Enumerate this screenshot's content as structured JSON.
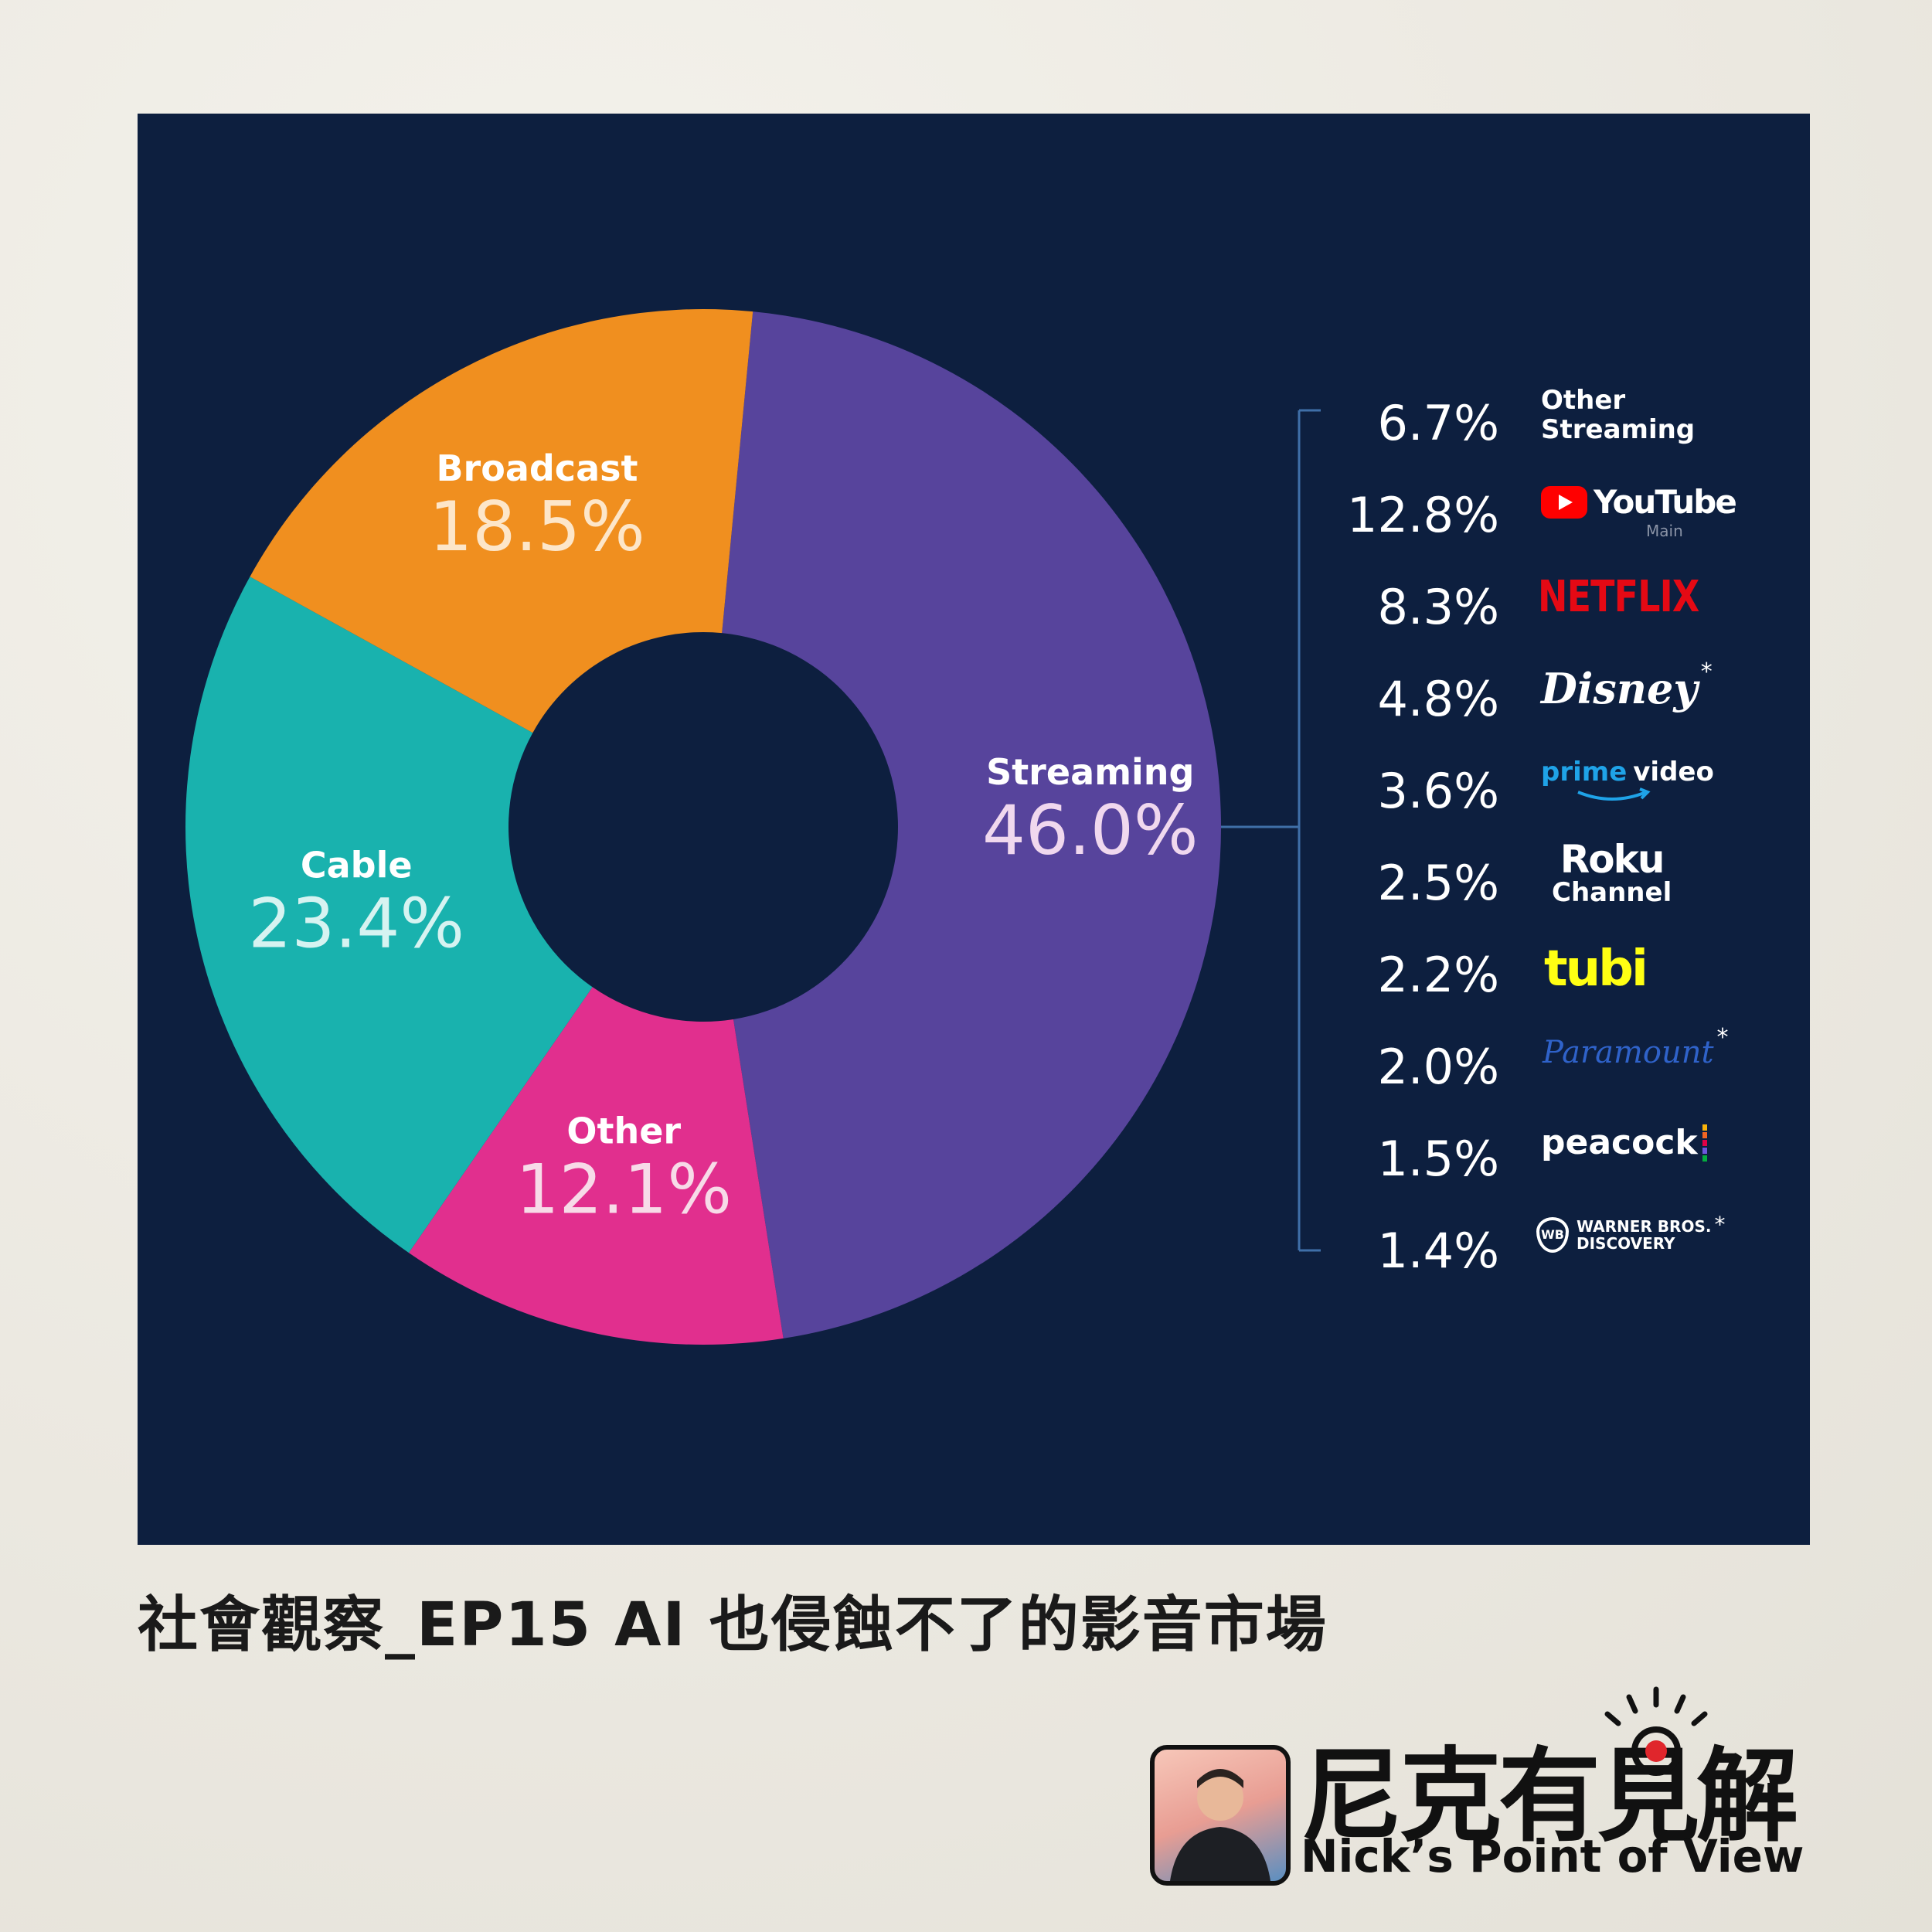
{
  "chart_data": {
    "type": "pie",
    "segments": [
      {
        "label": "Streaming",
        "value": 46.0,
        "display": "46.0%",
        "color": "#57449c",
        "label_color": "#ffffff",
        "value_color": "#f0d8ee"
      },
      {
        "label": "Other",
        "value": 12.1,
        "display": "12.1%",
        "color": "#e12f8e",
        "label_color": "#ffffff",
        "value_color": "#f7dbe8"
      },
      {
        "label": "Cable",
        "value": 23.4,
        "display": "23.4%",
        "color": "#19b2ae",
        "label_color": "#ffffff",
        "value_color": "#d6f3f1"
      },
      {
        "label": "Broadcast",
        "value": 18.5,
        "display": "18.5%",
        "color": "#f08f1f",
        "label_color": "#ffffff",
        "value_color": "#fde6c9"
      }
    ],
    "streaming_breakdown": [
      {
        "value": 6.7,
        "display": "6.7%",
        "brand": "Other Streaming",
        "brand_line1": "Other",
        "brand_line2": "Streaming",
        "logo": "text-logo"
      },
      {
        "value": 12.8,
        "display": "12.8%",
        "brand": "YouTube",
        "sub": "Main",
        "logo": "youtube-logo"
      },
      {
        "value": 8.3,
        "display": "8.3%",
        "brand": "NETFLIX",
        "logo": "netflix-logo"
      },
      {
        "value": 4.8,
        "display": "4.8%",
        "brand": "Disney",
        "asterisk": "*",
        "logo": "disney-logo"
      },
      {
        "value": 3.6,
        "display": "3.6%",
        "brand": "prime video",
        "brand_line1": "prime",
        "brand_line2": "video",
        "logo": "prime-video-logo"
      },
      {
        "value": 2.5,
        "display": "2.5%",
        "brand": "Roku Channel",
        "brand_line1": "Roku",
        "brand_line2": "Channel",
        "logo": "roku-channel-logo"
      },
      {
        "value": 2.2,
        "display": "2.2%",
        "brand": "tubi",
        "logo": "tubi-logo"
      },
      {
        "value": 2.0,
        "display": "2.0%",
        "brand": "Paramount",
        "asterisk": "*",
        "logo": "paramount-logo"
      },
      {
        "value": 1.5,
        "display": "1.5%",
        "brand": "peacock",
        "logo": "peacock-logo"
      },
      {
        "value": 1.4,
        "display": "1.4%",
        "brand": "Warner Bros. Discovery",
        "brand_line1": "WARNER BROS.",
        "brand_line2": "DISCOVERY",
        "asterisk": "*",
        "logo": "wb-logo"
      }
    ]
  },
  "caption": "社會觀察_EP15 AI 也侵蝕不了的影音市場",
  "branding": {
    "name_cn": "尼克有見解",
    "name_en": "Nick’s Point of View"
  },
  "colors": {
    "panel_bg": "#0d1f3f",
    "bracket": "#3f6fa8",
    "youtube_red": "#ff0000",
    "netflix_red": "#e50914",
    "prime_blue": "#1fa3e8",
    "tubi_yellow": "#ffff13",
    "paramount_blue": "#2f62c9"
  }
}
